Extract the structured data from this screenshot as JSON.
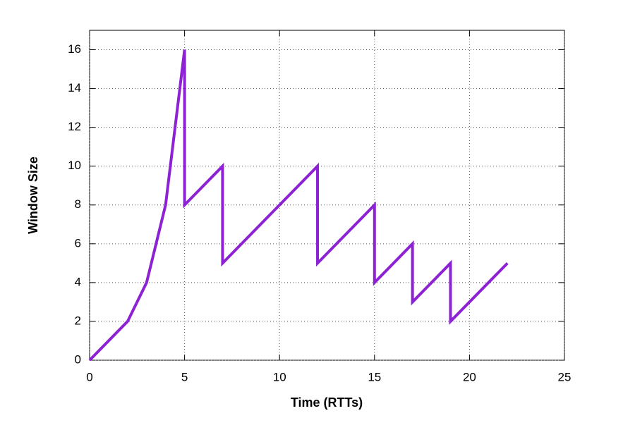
{
  "chart_data": {
    "type": "line",
    "x_label": "Time (RTTs)",
    "y_label": "Window Size",
    "series": [
      {
        "color": "#8c22d4",
        "x": [
          0,
          2,
          3,
          4,
          5,
          5,
          7,
          7,
          12,
          12,
          15,
          15,
          17,
          17,
          19,
          19,
          22
        ],
        "values": [
          0,
          2,
          4,
          8,
          16,
          8,
          10,
          5,
          10,
          5,
          8,
          4,
          6,
          3,
          5,
          2,
          5
        ]
      }
    ],
    "xlim": [
      0,
      25
    ],
    "xticks": [
      0,
      5,
      10,
      15,
      20,
      25
    ],
    "ylim": [
      0,
      17
    ],
    "yticks": [
      0,
      2,
      4,
      6,
      8,
      10,
      12,
      14,
      16
    ],
    "grid": true
  }
}
